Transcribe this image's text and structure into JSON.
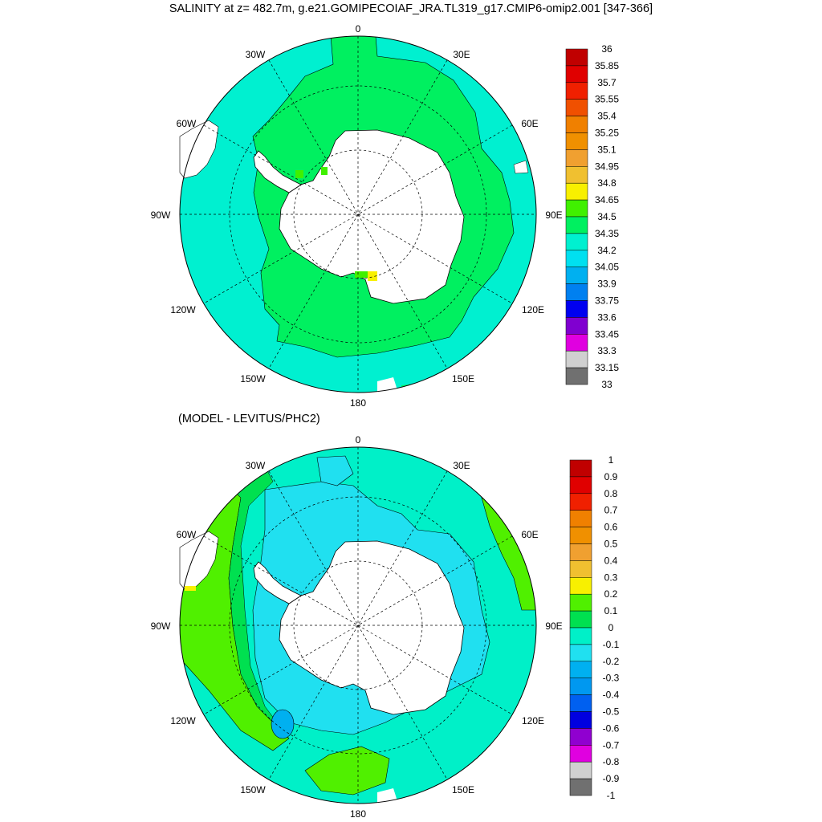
{
  "title": "SALINITY at z= 482.7m, g.e21.GOMIPECOIAF_JRA.TL319_g17.CMIP6-omip2.001 [347-366]",
  "subtitle": "(MODEL - LEVITUS/PHC2)",
  "longitude_labels": {
    "lon_0": "0",
    "lon_30e": "30E",
    "lon_60e": "60E",
    "lon_90e": "90E",
    "lon_120e": "120E",
    "lon_150e": "150E",
    "lon_180": "180",
    "lon_150w": "150W",
    "lon_120w": "120W",
    "lon_90w": "90W",
    "lon_60w": "60W",
    "lon_30w": "30W"
  },
  "top_colorbar": {
    "labels": [
      "36",
      "35.85",
      "35.7",
      "35.55",
      "35.4",
      "35.25",
      "35.1",
      "34.95",
      "34.8",
      "34.65",
      "34.5",
      "34.35",
      "34.2",
      "34.05",
      "33.9",
      "33.75",
      "33.6",
      "33.45",
      "33.3",
      "33.15",
      "33"
    ],
    "colors": [
      "#c00000",
      "#e00000",
      "#f02000",
      "#f05000",
      "#f08000",
      "#f09000",
      "#f0a030",
      "#f0c030",
      "#f8f000",
      "#40f000",
      "#00f060",
      "#00f0d0",
      "#00e0f0",
      "#00b0f0",
      "#0080f0",
      "#0000f0",
      "#8000d0",
      "#e000e0",
      "#d0d0d0",
      "#707070"
    ]
  },
  "bottom_colorbar": {
    "labels": [
      "1",
      "0.9",
      "0.8",
      "0.7",
      "0.6",
      "0.5",
      "0.4",
      "0.3",
      "0.2",
      "0.1",
      "0",
      "-0.1",
      "-0.2",
      "-0.3",
      "-0.4",
      "-0.5",
      "-0.6",
      "-0.7",
      "-0.8",
      "-0.9",
      "-1"
    ],
    "colors": [
      "#c00000",
      "#e00000",
      "#f02000",
      "#f08000",
      "#f09000",
      "#f0a030",
      "#f0c030",
      "#f8f000",
      "#50f000",
      "#00e050",
      "#00f0c8",
      "#20e0f0",
      "#00b0f0",
      "#0098f0",
      "#0060f0",
      "#0000e0",
      "#9000d0",
      "#e000e0",
      "#d0d0d0",
      "#707070"
    ]
  },
  "field_colors": {
    "ocean_base": "#00f0d0",
    "green_band": "#00f060",
    "light_blue": "#20e0f0",
    "lime": "#50f000",
    "yellow": "#f8f000",
    "land": "#ffffff"
  }
}
